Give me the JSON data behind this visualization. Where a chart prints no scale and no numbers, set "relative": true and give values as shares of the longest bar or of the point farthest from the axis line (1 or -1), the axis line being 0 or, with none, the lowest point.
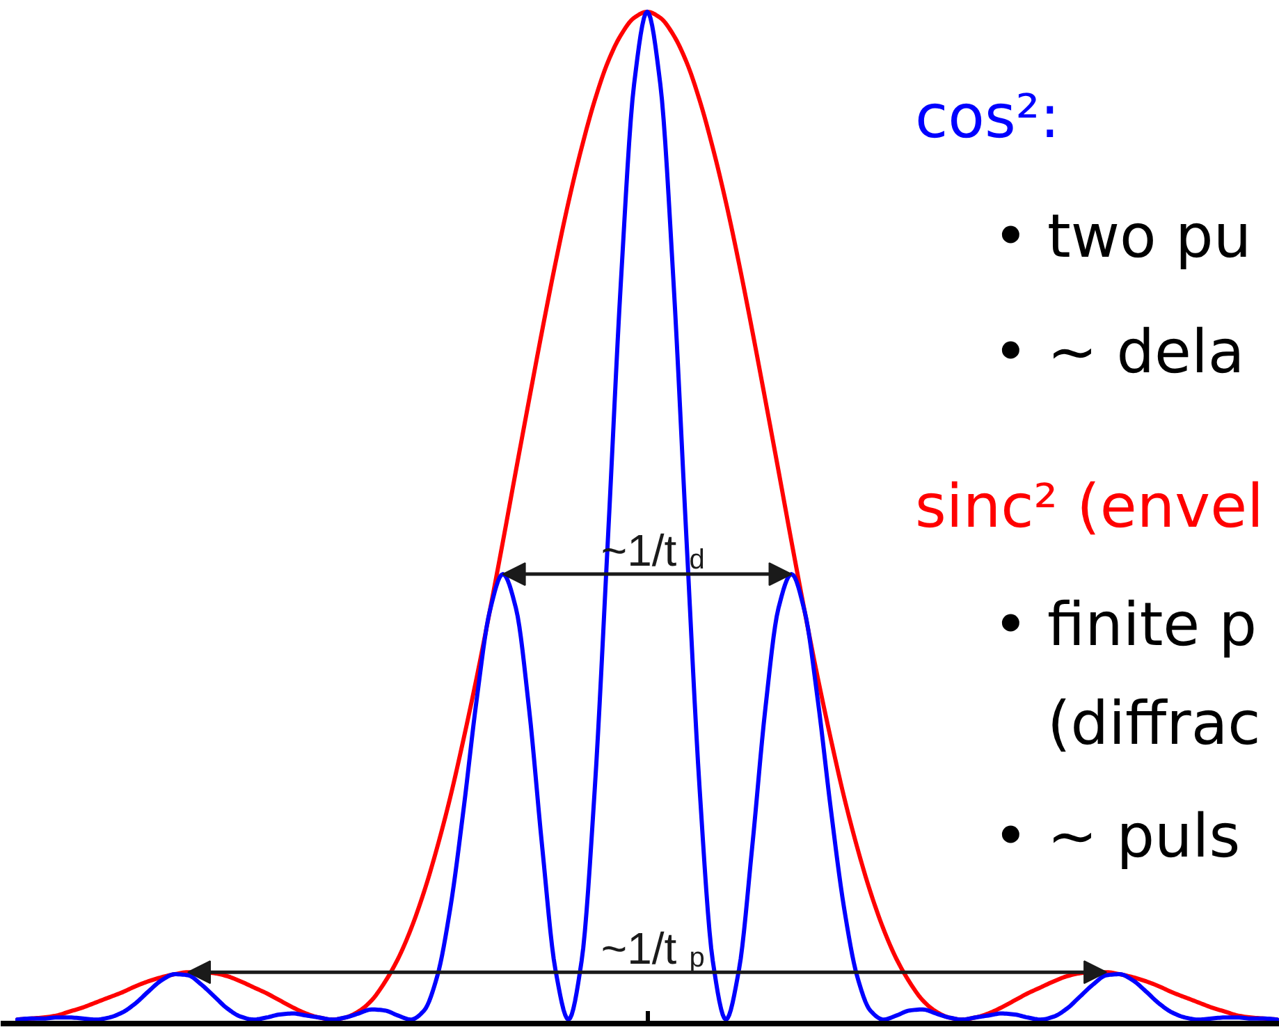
{
  "chart_data": {
    "type": "line",
    "relative": true,
    "categories": [
      null,
      null,
      null,
      null,
      null,
      null,
      null,
      null,
      null,
      null,
      null,
      null,
      null,
      null,
      null,
      null,
      null,
      null,
      null,
      null,
      null,
      null,
      null,
      null,
      null,
      null,
      null,
      null,
      null,
      null,
      null,
      null,
      null,
      null,
      null,
      null,
      null,
      null,
      null,
      null,
      null,
      null,
      null,
      null,
      null,
      null,
      null,
      null,
      null,
      null,
      null,
      null,
      null,
      null,
      null,
      null,
      null,
      null,
      null,
      null,
      null,
      null,
      null,
      null,
      null,
      null,
      null,
      null,
      null,
      null,
      null,
      null,
      null,
      null,
      null,
      null,
      null,
      null,
      null,
      null,
      null,
      null,
      null,
      null,
      null,
      null,
      null,
      null,
      null,
      null,
      null,
      null,
      null,
      null,
      null,
      null,
      null
    ],
    "series": [
      {
        "name": "cos²:",
        "color": "#0000ff",
        "values": [
          0,
          0.001,
          0.001,
          0.002,
          0.002,
          0.001,
          0,
          0.002,
          0.007,
          0.016,
          0.028,
          0.039,
          0.045,
          0.044,
          0.035,
          0.023,
          0.011,
          0.003,
          0,
          0.002,
          0.005,
          0.006,
          0.004,
          0.002,
          0,
          0.002,
          0.006,
          0.01,
          0.009,
          0.004,
          0,
          0.009,
          0.043,
          0.111,
          0.208,
          0.317,
          0.405,
          0.442,
          0.408,
          0.308,
          0.171,
          0.05,
          0,
          0.058,
          0.228,
          0.475,
          0.733,
          0.928,
          1,
          0.928,
          0.733,
          0.475,
          0.228,
          0.058,
          0,
          0.05,
          0.171,
          0.308,
          0.408,
          0.442,
          0.405,
          0.317,
          0.208,
          0.111,
          0.043,
          0.009,
          0,
          0.004,
          0.009,
          0.01,
          0.006,
          0.002,
          0,
          0.002,
          0.004,
          0.006,
          0.005,
          0.002,
          0,
          0.003,
          0.011,
          0.023,
          0.035,
          0.044,
          0.045,
          0.039,
          0.028,
          0.016,
          0.007,
          0.002,
          0,
          0.001,
          0.002,
          0.002,
          0.001,
          0.001,
          0
        ]
      },
      {
        "name": "sinc² (envel",
        "color": "#ff0000",
        "values": [
          0,
          0.001,
          0.002,
          0.004,
          0.008,
          0.012,
          0.017,
          0.022,
          0.027,
          0.033,
          0.038,
          0.042,
          0.045,
          0.047,
          0.047,
          0.046,
          0.043,
          0.038,
          0.032,
          0.026,
          0.019,
          0.012,
          0.006,
          0.002,
          0,
          0.002,
          0.008,
          0.019,
          0.037,
          0.06,
          0.09,
          0.127,
          0.171,
          0.221,
          0.278,
          0.339,
          0.405,
          0.474,
          0.545,
          0.615,
          0.684,
          0.75,
          0.811,
          0.865,
          0.912,
          0.95,
          0.977,
          0.994,
          1,
          0.994,
          0.977,
          0.95,
          0.912,
          0.865,
          0.811,
          0.75,
          0.684,
          0.615,
          0.545,
          0.474,
          0.405,
          0.339,
          0.278,
          0.221,
          0.171,
          0.127,
          0.09,
          0.06,
          0.037,
          0.019,
          0.008,
          0.002,
          0,
          0.002,
          0.006,
          0.012,
          0.019,
          0.026,
          0.032,
          0.038,
          0.043,
          0.046,
          0.047,
          0.047,
          0.045,
          0.042,
          0.038,
          0.033,
          0.027,
          0.022,
          0.017,
          0.012,
          0.008,
          0.004,
          0.002,
          0.001,
          0
        ]
      }
    ],
    "annotations": [
      "• two pu",
      "• ∼ dela",
      "• finite p",
      "(diffrac",
      "• ∼ puls",
      "~1/t$_{d}$",
      "~1/t$_{p}$"
    ]
  }
}
